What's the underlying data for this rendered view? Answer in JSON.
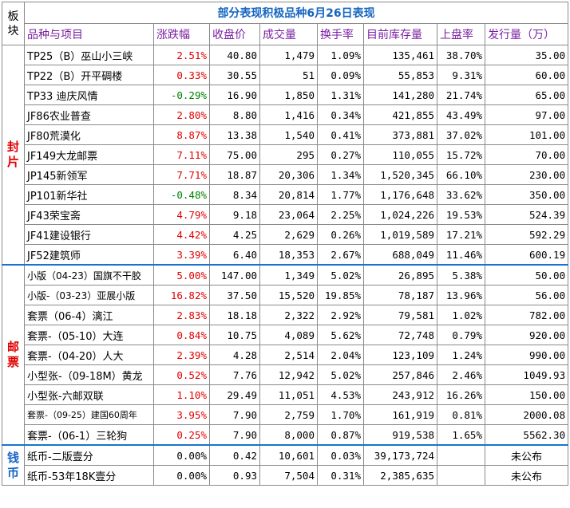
{
  "title": "部分表现积极品种6月26日表现",
  "corner_label": [
    "板",
    "块"
  ],
  "headers": [
    "品种与项目",
    "涨跌幅",
    "收盘价",
    "成交量",
    "换手率",
    "目前库存量",
    "上盘率",
    "发行量（万）"
  ],
  "sections": [
    {
      "label": [
        "封",
        "片"
      ],
      "rows": [
        {
          "name": "TP25（B）巫山小三峡",
          "change": "2.51%",
          "dir": "up",
          "close": "40.80",
          "volume": "1,479",
          "turnover": "1.09%",
          "stock": "135,461",
          "listing_rate": "38.70%",
          "issue": "35.00"
        },
        {
          "name": "TP22（B）开平碉楼",
          "change": "0.33%",
          "dir": "up",
          "close": "30.55",
          "volume": "51",
          "turnover": "0.09%",
          "stock": "55,853",
          "listing_rate": "9.31%",
          "issue": "60.00"
        },
        {
          "name": "TP33 迪庆风情",
          "change": "-0.29%",
          "dir": "down",
          "close": "16.90",
          "volume": "1,850",
          "turnover": "1.31%",
          "stock": "141,280",
          "listing_rate": "21.74%",
          "issue": "65.00"
        },
        {
          "name": "JF86农业普查",
          "change": "2.80%",
          "dir": "up",
          "close": "8.80",
          "volume": "1,416",
          "turnover": "0.34%",
          "stock": "421,855",
          "listing_rate": "43.49%",
          "issue": "97.00"
        },
        {
          "name": "JF80荒漠化",
          "change": "8.87%",
          "dir": "up",
          "close": "13.38",
          "volume": "1,540",
          "turnover": "0.41%",
          "stock": "373,881",
          "listing_rate": "37.02%",
          "issue": "101.00"
        },
        {
          "name": "JF149大龙邮票",
          "change": "7.11%",
          "dir": "up",
          "close": "75.00",
          "volume": "295",
          "turnover": "0.27%",
          "stock": "110,055",
          "listing_rate": "15.72%",
          "issue": "70.00"
        },
        {
          "name": "JP145新领军",
          "change": "7.71%",
          "dir": "up",
          "close": "18.87",
          "volume": "20,306",
          "turnover": "1.34%",
          "stock": "1,520,345",
          "listing_rate": "66.10%",
          "issue": "230.00"
        },
        {
          "name": "JP101新华社",
          "change": "-0.48%",
          "dir": "down",
          "close": "8.34",
          "volume": "20,814",
          "turnover": "1.77%",
          "stock": "1,176,648",
          "listing_rate": "33.62%",
          "issue": "350.00"
        },
        {
          "name": "JF43荣宝斋",
          "change": "4.79%",
          "dir": "up",
          "close": "9.18",
          "volume": "23,064",
          "turnover": "2.25%",
          "stock": "1,024,226",
          "listing_rate": "19.53%",
          "issue": "524.39"
        },
        {
          "name": "JF41建设银行",
          "change": "4.42%",
          "dir": "up",
          "close": "4.25",
          "volume": "2,629",
          "turnover": "0.26%",
          "stock": "1,019,589",
          "listing_rate": "17.21%",
          "issue": "592.29"
        },
        {
          "name": "JF52建筑师",
          "change": "3.39%",
          "dir": "up",
          "close": "6.40",
          "volume": "18,353",
          "turnover": "2.67%",
          "stock": "688,049",
          "listing_rate": "11.46%",
          "issue": "600.19"
        }
      ]
    },
    {
      "label": [
        "邮",
        "票"
      ],
      "rows": [
        {
          "name": "小版（04-23）国旗不干胶",
          "size": "small",
          "change": "5.00%",
          "dir": "up",
          "close": "147.00",
          "volume": "1,349",
          "turnover": "5.02%",
          "stock": "26,895",
          "listing_rate": "5.38%",
          "issue": "50.00"
        },
        {
          "name": "小版-（03-23）亚展小版",
          "size": "small",
          "change": "16.82%",
          "dir": "up",
          "close": "37.50",
          "volume": "15,520",
          "turnover": "19.85%",
          "stock": "78,187",
          "listing_rate": "13.96%",
          "issue": "56.00"
        },
        {
          "name": "套票（06-4）漓江",
          "change": "2.83%",
          "dir": "up",
          "close": "18.18",
          "volume": "2,322",
          "turnover": "2.92%",
          "stock": "79,581",
          "listing_rate": "1.02%",
          "issue": "782.00"
        },
        {
          "name": "套票-（05-10）大连",
          "change": "0.84%",
          "dir": "up",
          "close": "10.75",
          "volume": "4,089",
          "turnover": "5.62%",
          "stock": "72,748",
          "listing_rate": "0.79%",
          "issue": "920.00"
        },
        {
          "name": "套票-（04-20）人大",
          "change": "2.39%",
          "dir": "up",
          "close": "4.28",
          "volume": "2,514",
          "turnover": "2.04%",
          "stock": "123,109",
          "listing_rate": "1.24%",
          "issue": "990.00"
        },
        {
          "name": "小型张-（09-18M）黄龙",
          "change": "0.52%",
          "dir": "up",
          "close": "7.76",
          "volume": "12,942",
          "turnover": "5.02%",
          "stock": "257,846",
          "listing_rate": "2.46%",
          "issue": "1049.93"
        },
        {
          "name": "小型张-六邮双联",
          "change": "1.10%",
          "dir": "up",
          "close": "29.49",
          "volume": "11,051",
          "turnover": "4.53%",
          "stock": "243,912",
          "listing_rate": "16.26%",
          "issue": "150.00"
        },
        {
          "name": "套票-（09-25）建国60周年",
          "size": "tiny",
          "change": "3.95%",
          "dir": "up",
          "close": "7.90",
          "volume": "2,759",
          "turnover": "1.70%",
          "stock": "161,919",
          "listing_rate": "0.81%",
          "issue": "2000.08"
        },
        {
          "name": "套票-（06-1）三轮狗",
          "change": "0.25%",
          "dir": "up",
          "close": "7.90",
          "volume": "8,000",
          "turnover": "0.87%",
          "stock": "919,538",
          "listing_rate": "1.65%",
          "issue": "5562.30"
        }
      ]
    },
    {
      "label": [
        "钱",
        "币"
      ],
      "rows": [
        {
          "name": "纸币-二版壹分",
          "change": "0.00%",
          "dir": "flat",
          "close": "0.42",
          "volume": "10,601",
          "turnover": "0.03%",
          "stock": "39,173,724",
          "listing_rate": "",
          "issue": "未公布"
        },
        {
          "name": "纸币-53年18K壹分",
          "change": "0.00%",
          "dir": "flat",
          "close": "0.93",
          "volume": "7,504",
          "turnover": "0.31%",
          "stock": "2,385,635",
          "listing_rate": "",
          "issue": "未公布"
        }
      ]
    }
  ],
  "colors": {
    "up": "#e00000",
    "down": "#008000",
    "header": "#7b1fa2",
    "title": "#1565c0",
    "separator": "#1a73c9"
  }
}
